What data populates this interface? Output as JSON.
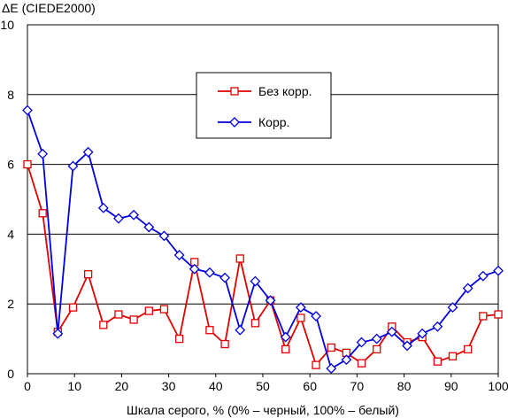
{
  "chart_data": {
    "type": "line",
    "title": "",
    "ylabel": "ΔE (CIEDE2000)",
    "xlabel": "Шкала серого, % (0% – черный, 100% – белый)",
    "xlim": [
      0,
      100
    ],
    "ylim": [
      0,
      10
    ],
    "x_ticks": [
      "0",
      "10",
      "20",
      "30",
      "40",
      "50",
      "60",
      "70",
      "80",
      "90",
      "100"
    ],
    "y_ticks": [
      "0",
      "2",
      "4",
      "6",
      "8",
      "10"
    ],
    "grid": "horizontal",
    "legend_position": "center-top",
    "x": [
      0,
      3.23,
      6.45,
      9.68,
      12.9,
      16.13,
      19.35,
      22.58,
      25.81,
      29.03,
      32.26,
      35.48,
      38.71,
      41.94,
      45.16,
      48.39,
      51.61,
      54.84,
      58.06,
      61.29,
      64.52,
      67.74,
      70.97,
      74.19,
      77.42,
      80.65,
      83.87,
      87.1,
      90.32,
      93.55,
      96.77,
      100
    ],
    "series": [
      {
        "name": "Без корр.",
        "color": "#e00000",
        "marker": "square",
        "values": [
          6.0,
          4.6,
          1.2,
          1.9,
          2.85,
          1.4,
          1.7,
          1.55,
          1.8,
          1.85,
          1.0,
          3.2,
          1.25,
          0.85,
          3.3,
          1.45,
          2.1,
          0.7,
          1.6,
          0.25,
          0.75,
          0.6,
          0.3,
          0.7,
          1.35,
          0.9,
          1.05,
          0.35,
          0.5,
          0.7,
          1.65,
          1.7
        ]
      },
      {
        "name": "Корр.",
        "color": "#0000e0",
        "marker": "diamond",
        "values": [
          7.55,
          6.3,
          1.15,
          5.95,
          6.35,
          4.75,
          4.45,
          4.55,
          4.2,
          3.95,
          3.4,
          3.0,
          2.9,
          2.75,
          1.25,
          2.65,
          2.1,
          1.05,
          1.9,
          1.65,
          0.15,
          0.4,
          0.9,
          1.0,
          1.2,
          0.8,
          1.15,
          1.35,
          1.9,
          2.45,
          2.8,
          2.95
        ]
      }
    ]
  }
}
